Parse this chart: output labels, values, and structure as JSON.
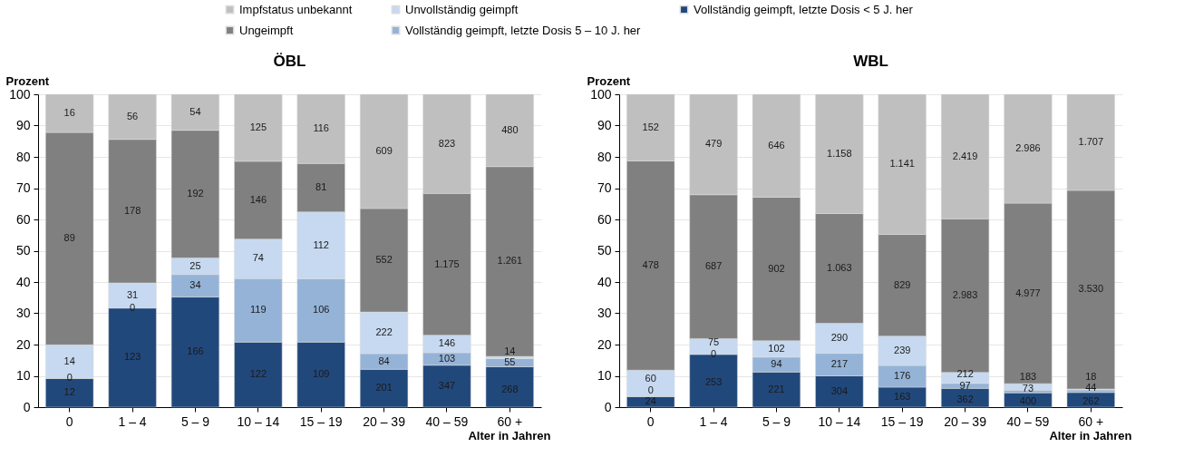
{
  "chart_data": [
    {
      "type": "bar",
      "stacked": true,
      "title": "ÖBL",
      "ylabel": "Prozent",
      "xlabel": "Alter in Jahren",
      "legend": "top",
      "grid": "y",
      "ylim": [
        0,
        100
      ],
      "yticks": [
        0,
        10,
        20,
        30,
        40,
        50,
        60,
        70,
        80,
        90,
        100
      ],
      "categories": [
        "0",
        "1 – 4",
        "5 – 9",
        "10 – 14",
        "15 – 19",
        "20 – 39",
        "40 – 59",
        "60 +"
      ],
      "series": [
        {
          "name": "Vollständig geimpft, letzte Dosis < 5 J. her",
          "color": "#21487b",
          "values": [
            9.2,
            31.7,
            35.2,
            20.8,
            20.8,
            12.1,
            13.4,
            12.9
          ]
        },
        {
          "name": "Vollständig geimpft, letzte Dosis 5 – 10 J. her",
          "color": "#95b3d7",
          "values": [
            0,
            0,
            7.2,
            20.3,
            20.2,
            5.0,
            4.0,
            2.6
          ]
        },
        {
          "name": "Unvollständig geimpft",
          "color": "#c6d9f0",
          "values": [
            10.7,
            8.0,
            5.3,
            12.6,
            21.4,
            13.3,
            5.6,
            0.7
          ]
        },
        {
          "name": "Ungeimpft",
          "color": "#808080",
          "values": [
            67.9,
            45.9,
            40.8,
            24.9,
            15.5,
            33.1,
            45.3,
            60.7
          ]
        },
        {
          "name": "Impfstatus unbekannt",
          "color": "#bfbfbf",
          "values": [
            12.2,
            14.4,
            11.5,
            21.4,
            22.1,
            36.5,
            31.7,
            23.1
          ]
        }
      ],
      "annotations": [
        "12",
        "0",
        "14",
        "89",
        "16",
        "123",
        "0",
        "31",
        "178",
        "56",
        "166",
        "34",
        "25",
        "192",
        "54",
        "122",
        "119",
        "74",
        "146",
        "125",
        "109",
        "106",
        "112",
        "81",
        "116",
        "201",
        "84",
        "222",
        "552",
        "609",
        "347",
        "103",
        "146",
        "1.175",
        "823",
        "268",
        "55",
        "14",
        "1.261",
        "480"
      ]
    },
    {
      "type": "bar",
      "stacked": true,
      "title": "WBL",
      "ylabel": "Prozent",
      "xlabel": "Alter in Jahren",
      "legend": "top",
      "grid": "y",
      "ylim": [
        0,
        100
      ],
      "yticks": [
        0,
        10,
        20,
        30,
        40,
        50,
        60,
        70,
        80,
        90,
        100
      ],
      "categories": [
        "0",
        "1 – 4",
        "5 – 9",
        "10 – 14",
        "15 – 19",
        "20 – 39",
        "40 – 59",
        "60 +"
      ],
      "series": [
        {
          "name": "Vollständig geimpft, letzte Dosis < 5 J. her",
          "color": "#21487b",
          "values": [
            3.4,
            16.9,
            11.2,
            10.0,
            6.4,
            6.0,
            4.6,
            4.7
          ]
        },
        {
          "name": "Vollständig geimpft, letzte Dosis 5 – 10 J. her",
          "color": "#95b3d7",
          "values": [
            0,
            0,
            4.8,
            7.2,
            6.9,
            1.6,
            0.8,
            0.8
          ]
        },
        {
          "name": "Unvollständig geimpft",
          "color": "#c6d9f0",
          "values": [
            8.4,
            5.0,
            5.2,
            9.6,
            9.4,
            3.5,
            2.1,
            0.3
          ]
        },
        {
          "name": "Ungeimpft",
          "color": "#808080",
          "values": [
            66.9,
            46.0,
            45.9,
            35.1,
            32.5,
            49.1,
            57.7,
            63.5
          ]
        },
        {
          "name": "Impfstatus unbekannt",
          "color": "#bfbfbf",
          "values": [
            21.3,
            32.1,
            32.9,
            38.1,
            44.8,
            39.8,
            34.8,
            30.7
          ]
        }
      ],
      "annotations": [
        "24",
        "0",
        "60",
        "478",
        "152",
        "253",
        "0",
        "75",
        "687",
        "479",
        "221",
        "94",
        "102",
        "902",
        "646",
        "304",
        "217",
        "290",
        "1.063",
        "1.158",
        "163",
        "176",
        "239",
        "829",
        "1.141",
        "362",
        "97",
        "212",
        "2.983",
        "2.419",
        "400",
        "73",
        "183",
        "4.977",
        "2.986",
        "262",
        "44",
        "18",
        "3.530",
        "1.707"
      ]
    }
  ]
}
